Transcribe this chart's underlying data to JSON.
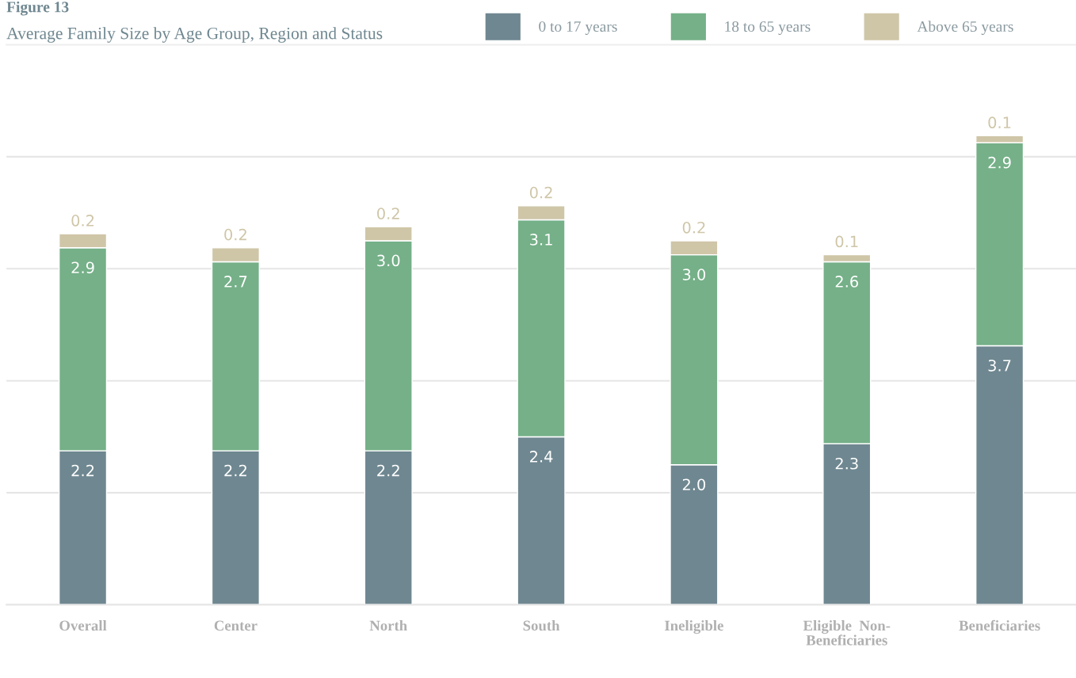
{
  "chart_data": {
    "type": "bar",
    "title": "Figure 13",
    "subtitle": "Average Family Size by Age Group, Region and Status",
    "categories": [
      "Overall",
      "Center",
      "North",
      "South",
      "Ineligible",
      "Eligible  Non-\nBeneficiaries",
      "Beneficiaries"
    ],
    "stacked": true,
    "grid": "y",
    "legend": "top right",
    "tick_labels": "x",
    "ylim": [
      0,
      8
    ],
    "yticks": [
      {
        "value": 0,
        "label": null
      },
      {
        "value": 1.6,
        "label": null
      },
      {
        "value": 3.2,
        "label": null
      },
      {
        "value": 4.8,
        "label": null
      },
      {
        "value": 6.4,
        "label": null
      }
    ],
    "series": [
      {
        "name": "0 to 17 years",
        "color": "#6f8790",
        "values": [
          2.2,
          2.2,
          2.2,
          2.4,
          2.0,
          2.3,
          3.7
        ],
        "value_labels": [
          "2.2",
          "2.2",
          "2.2",
          "2.4",
          "2.0",
          "2.3",
          "3.7"
        ]
      },
      {
        "name": "18 to 65 years",
        "color": "#75b088",
        "values": [
          2.9,
          2.7,
          3.0,
          3.1,
          3.0,
          2.6,
          2.9
        ],
        "value_labels": [
          "2.9",
          "2.7",
          "3.0",
          "3.1",
          "3.0",
          "2.6",
          "2.9"
        ]
      },
      {
        "name": "Above 65 years",
        "color": "#cfc6a8",
        "values": [
          0.2,
          0.2,
          0.2,
          0.2,
          0.2,
          0.1,
          0.1
        ],
        "value_labels": [
          "0.2",
          "0.2",
          "0.2",
          "0.2",
          "0.2",
          "0.1",
          "0.1"
        ]
      }
    ]
  }
}
